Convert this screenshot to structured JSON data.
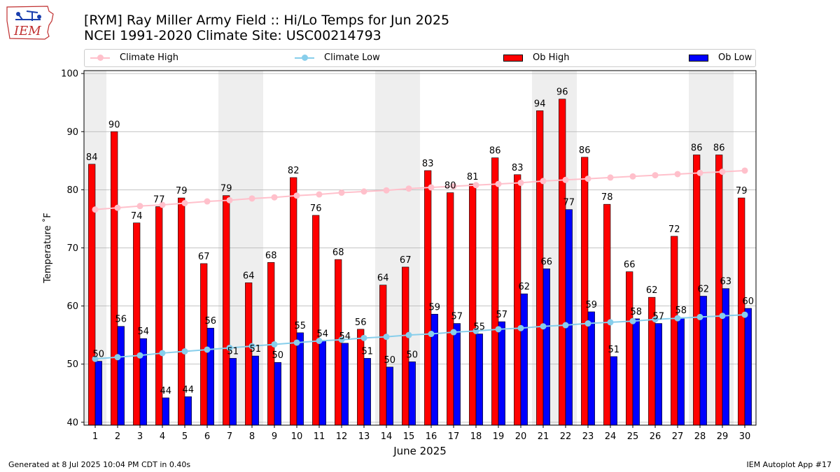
{
  "logo": {
    "text": "IEM",
    "icon": "iowa-state-outline-with-weather-station"
  },
  "header": {
    "title_line1": "[RYM] Ray Miller Army Field :: Hi/Lo Temps for Jun 2025",
    "title_line2": "NCEI 1991-2020 Climate Site: USC00214793"
  },
  "legend": {
    "climate_high": "Climate High",
    "climate_low": "Climate Low",
    "ob_high": "Ob High",
    "ob_low": "Ob Low"
  },
  "footer": {
    "generated": "Generated at 8 Jul 2025 10:04 PM CDT in 0.40s",
    "app": "IEM Autoplot App #17"
  },
  "colors": {
    "ob_high": "#ff0000",
    "ob_low": "#0000ff",
    "climate_high": "#ffc0cb",
    "climate_low": "#87ceeb",
    "weekend_shade": "#eeeeee",
    "grid": "#b0b0b0"
  },
  "chart_data": {
    "type": "bar",
    "xlabel": "June 2025",
    "ylabel": "Temperature ˚F",
    "ylim": [
      39.5,
      100.5
    ],
    "yticks": [
      40,
      50,
      60,
      70,
      80,
      90,
      100
    ],
    "grid": "horizontal",
    "legend_position": "top",
    "categories": [
      1,
      2,
      3,
      4,
      5,
      6,
      7,
      8,
      9,
      10,
      11,
      12,
      13,
      14,
      15,
      16,
      17,
      18,
      19,
      20,
      21,
      22,
      23,
      24,
      25,
      26,
      27,
      28,
      29,
      30
    ],
    "shaded_days": [
      1,
      7,
      8,
      14,
      15,
      21,
      22,
      28,
      29
    ],
    "series": [
      {
        "name": "Ob High",
        "kind": "bar",
        "values": [
          84.4,
          90,
          74.3,
          77.1,
          78.6,
          67.3,
          79,
          64,
          67.5,
          82.1,
          75.6,
          68,
          56,
          63.6,
          66.7,
          83.3,
          79.5,
          81,
          85.5,
          82.6,
          93.6,
          95.6,
          85.6,
          77.5,
          65.9,
          61.5,
          72,
          86,
          86,
          78.6
        ],
        "labels": [
          "84",
          "90",
          "74",
          "77",
          "79",
          "67",
          "79",
          "64",
          "68",
          "82",
          "76",
          "68",
          "56",
          "64",
          "67",
          "83",
          "80",
          "81",
          "86",
          "83",
          "94",
          "96",
          "86",
          "78",
          "66",
          "62",
          "72",
          "86",
          "86",
          "79"
        ]
      },
      {
        "name": "Ob Low",
        "kind": "bar",
        "values": [
          50.5,
          56.5,
          54.4,
          44.2,
          44.4,
          56.2,
          51,
          51.4,
          50.3,
          55.4,
          54,
          53.6,
          51,
          49.5,
          50.4,
          58.6,
          57,
          55.2,
          57.3,
          62.1,
          66.4,
          76.6,
          59,
          51.3,
          57.8,
          57,
          58,
          61.7,
          63,
          59.6
        ],
        "labels": [
          "50",
          "56",
          "54",
          "44",
          "44",
          "56",
          "51",
          "51",
          "50",
          "55",
          "54",
          "54",
          "51",
          "50",
          "50",
          "59",
          "57",
          "55",
          "57",
          "62",
          "66",
          "77",
          "59",
          "51",
          "58",
          "57",
          "58",
          "62",
          "63",
          "60"
        ]
      },
      {
        "name": "Climate High",
        "kind": "line",
        "values": [
          76.6,
          76.9,
          77.2,
          77.4,
          77.7,
          78,
          78.2,
          78.5,
          78.7,
          79,
          79.2,
          79.5,
          79.7,
          79.9,
          80.2,
          80.4,
          80.6,
          80.8,
          81,
          81.2,
          81.5,
          81.7,
          81.9,
          82.1,
          82.3,
          82.5,
          82.7,
          82.9,
          83.1,
          83.3
        ]
      },
      {
        "name": "Climate Low",
        "kind": "line",
        "values": [
          50.9,
          51.2,
          51.5,
          51.9,
          52.2,
          52.5,
          52.8,
          53.1,
          53.4,
          53.7,
          54,
          54.2,
          54.5,
          54.7,
          55,
          55.2,
          55.5,
          55.7,
          56,
          56.2,
          56.5,
          56.7,
          57,
          57.2,
          57.4,
          57.7,
          57.9,
          58.1,
          58.3,
          58.5
        ]
      }
    ]
  }
}
